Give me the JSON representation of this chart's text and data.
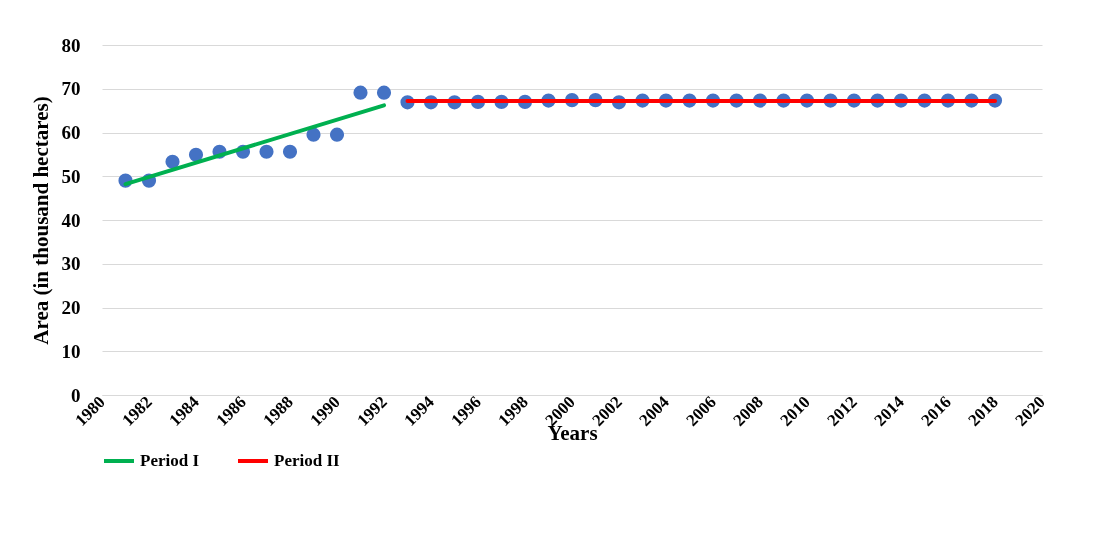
{
  "chart_data": {
    "type": "scatter",
    "xlabel": "Years",
    "ylabel": "Area (in thousand hectares)",
    "x": [
      1981,
      1982,
      1983,
      1984,
      1985,
      1986,
      1987,
      1988,
      1989,
      1990,
      1991,
      1992,
      1993,
      1994,
      1995,
      1996,
      1997,
      1998,
      1999,
      2000,
      2001,
      2002,
      2003,
      2004,
      2005,
      2006,
      2007,
      2008,
      2009,
      2010,
      2011,
      2012,
      2013,
      2014,
      2015,
      2016,
      2017,
      2018
    ],
    "series": [
      {
        "marker": "circle",
        "color": "#4472c4",
        "values": [
          49.0,
          49.0,
          53.3,
          54.9,
          55.6,
          55.6,
          55.6,
          55.6,
          59.5,
          59.5,
          69.1,
          69.1,
          66.9,
          66.9,
          66.9,
          67.0,
          67.0,
          67.0,
          67.3,
          67.4,
          67.4,
          66.9,
          67.3,
          67.3,
          67.3,
          67.3,
          67.3,
          67.3,
          67.3,
          67.3,
          67.3,
          67.3,
          67.3,
          67.3,
          67.3,
          67.3,
          67.3,
          67.3
        ]
      },
      {
        "type": "line",
        "marker": "none",
        "name": "Period I",
        "color": "#00b050",
        "x": [
          1981,
          1992
        ],
        "values": [
          48.2,
          66.2
        ]
      },
      {
        "type": "line",
        "marker": "none",
        "name": "Period II",
        "color": "#ff0000",
        "x": [
          1993,
          2018
        ],
        "values": [
          67.2,
          67.2
        ]
      }
    ],
    "xlim": [
      1980,
      2020
    ],
    "xticks": [
      1980,
      1982,
      1984,
      1986,
      1988,
      1990,
      1992,
      1994,
      1996,
      1998,
      2000,
      2002,
      2004,
      2006,
      2008,
      2010,
      2012,
      2014,
      2016,
      2018,
      2020
    ],
    "ylim": [
      0,
      80
    ],
    "yticks": [
      0,
      10,
      20,
      30,
      40,
      50,
      60,
      70,
      80
    ],
    "grid": "y",
    "legend": "bottom",
    "line_style": "solid"
  }
}
